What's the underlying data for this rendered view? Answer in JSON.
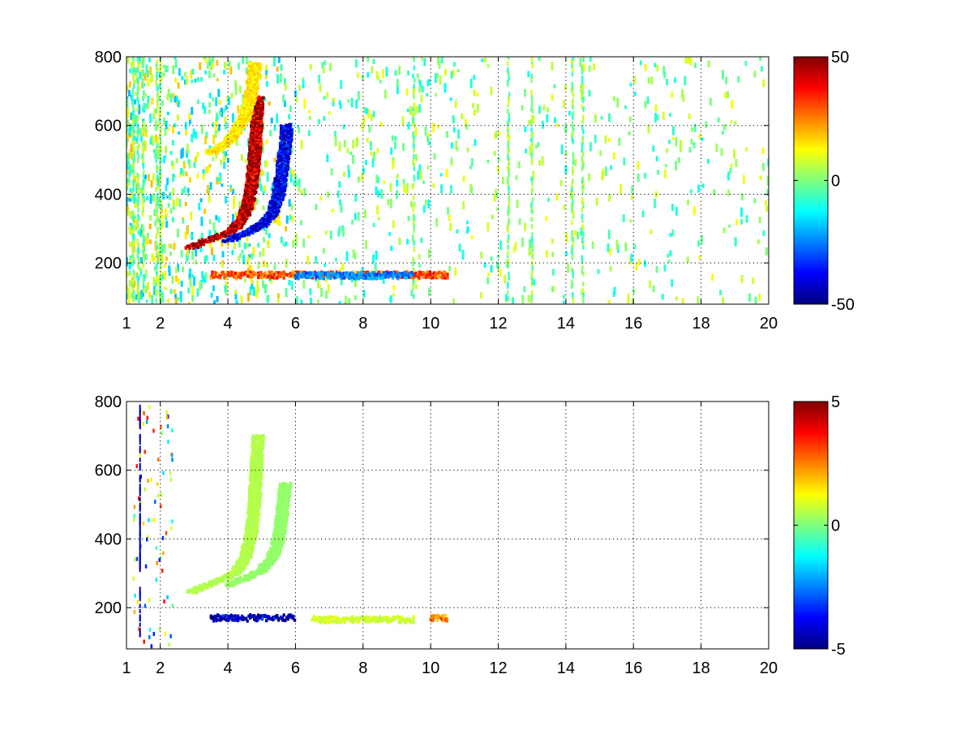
{
  "chart_data": [
    {
      "type": "heatmap",
      "title": "",
      "xlabel": "",
      "ylabel": "",
      "xlim": [
        1,
        20
      ],
      "ylim": [
        80,
        800
      ],
      "xticks": [
        1,
        2,
        4,
        6,
        8,
        10,
        12,
        14,
        16,
        18,
        20
      ],
      "yticks": [
        200,
        400,
        600,
        800
      ],
      "grid": true,
      "colormap": "jet",
      "colorbar": {
        "range": [
          -50,
          50
        ],
        "ticks": [
          -50,
          0,
          50
        ],
        "placement": "right"
      },
      "features": [
        {
          "kind": "curve",
          "value": 45,
          "points": [
            [
              2.9,
              245
            ],
            [
              3.3,
              262
            ],
            [
              3.8,
              280
            ],
            [
              4.2,
              300
            ],
            [
              4.5,
              340
            ],
            [
              4.7,
              420
            ],
            [
              4.8,
              520
            ],
            [
              4.85,
              620
            ],
            [
              4.9,
              680
            ]
          ]
        },
        {
          "kind": "curve",
          "value": -40,
          "points": [
            [
              4.0,
              265
            ],
            [
              4.6,
              290
            ],
            [
              5.0,
              310
            ],
            [
              5.3,
              340
            ],
            [
              5.5,
              400
            ],
            [
              5.6,
              470
            ],
            [
              5.7,
              540
            ],
            [
              5.75,
              600
            ]
          ]
        },
        {
          "kind": "curve",
          "value": 15,
          "points": [
            [
              3.5,
              520
            ],
            [
              4.0,
              550
            ],
            [
              4.5,
              620
            ],
            [
              4.7,
              700
            ],
            [
              4.8,
              780
            ]
          ]
        },
        {
          "kind": "band",
          "value": 30,
          "x_range": [
            3.5,
            10.5
          ],
          "y": 165
        },
        {
          "kind": "band",
          "value": -25,
          "x_range": [
            6.0,
            9.5
          ],
          "y": 163
        }
      ]
    },
    {
      "type": "heatmap",
      "title": "",
      "xlabel": "",
      "ylabel": "",
      "xlim": [
        1,
        20
      ],
      "ylim": [
        80,
        800
      ],
      "xticks": [
        1,
        2,
        4,
        6,
        8,
        10,
        12,
        14,
        16,
        18,
        20
      ],
      "yticks": [
        200,
        400,
        600,
        800
      ],
      "grid": true,
      "colormap": "jet",
      "colorbar": {
        "range": [
          -5,
          5
        ],
        "ticks": [
          -5,
          0,
          5
        ],
        "placement": "right"
      },
      "features": [
        {
          "kind": "curve",
          "value": 0.5,
          "points": [
            [
              2.9,
              245
            ],
            [
              3.3,
              262
            ],
            [
              3.8,
              280
            ],
            [
              4.2,
              300
            ],
            [
              4.5,
              340
            ],
            [
              4.7,
              420
            ],
            [
              4.8,
              520
            ],
            [
              4.85,
              620
            ],
            [
              4.9,
              700
            ]
          ]
        },
        {
          "kind": "curve",
          "value": 0.2,
          "points": [
            [
              4.0,
              265
            ],
            [
              4.6,
              290
            ],
            [
              5.0,
              310
            ],
            [
              5.3,
              340
            ],
            [
              5.5,
              400
            ],
            [
              5.6,
              470
            ],
            [
              5.7,
              560
            ]
          ]
        },
        {
          "kind": "band",
          "value": -4.5,
          "x_range": [
            3.5,
            6.0
          ],
          "y": 170
        },
        {
          "kind": "band",
          "value": 0.8,
          "x_range": [
            6.5,
            9.5
          ],
          "y": 165
        },
        {
          "kind": "band",
          "value": 2.5,
          "x_range": [
            10.0,
            10.5
          ],
          "y": 170
        }
      ]
    }
  ]
}
